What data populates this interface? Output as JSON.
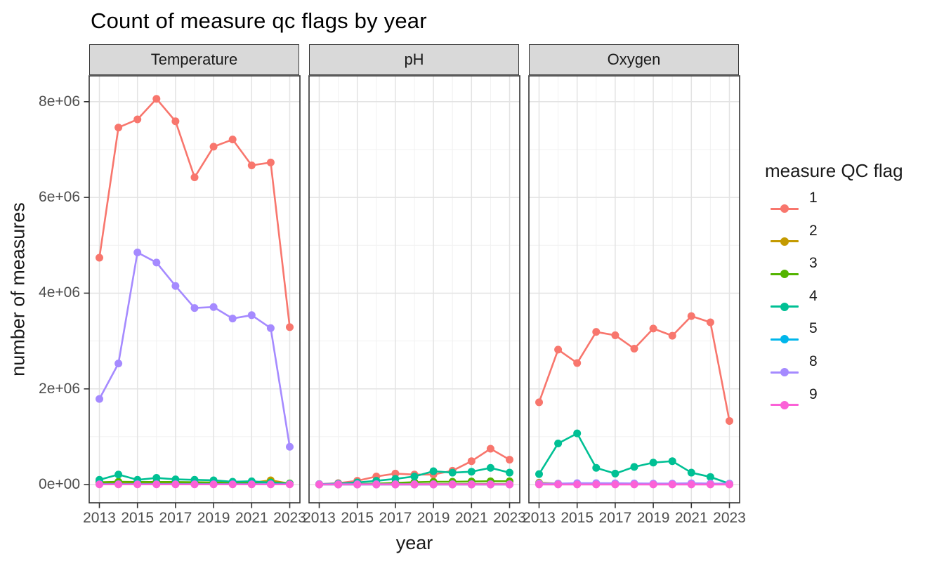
{
  "title": "Count of measure qc flags by year",
  "facets": [
    "Temperature",
    "pH",
    "Oxygen"
  ],
  "axes": {
    "x_title": "year",
    "y_title": "number of measures",
    "x_tick_labels": [
      "2013",
      "2015",
      "2017",
      "2019",
      "2021",
      "2023"
    ],
    "x_tick_values": [
      2013,
      2015,
      2017,
      2019,
      2021,
      2023
    ],
    "x_minor_values": [
      2014,
      2016,
      2018,
      2020,
      2022
    ],
    "x_domain": [
      2012.465,
      2023.535
    ],
    "y_tick_labels": [
      "0e+00",
      "2e+06",
      "4e+06",
      "6e+06",
      "8e+06"
    ],
    "y_tick_values": [
      0,
      2000000,
      4000000,
      6000000,
      8000000
    ],
    "y_minor_values": [
      1000000,
      3000000,
      5000000,
      7000000
    ],
    "y_domain": [
      -380000,
      8540000
    ],
    "grid": "on"
  },
  "legend": {
    "title": "measure QC flag",
    "position": "right",
    "entries": [
      {
        "label": "1",
        "color": "#F8766D"
      },
      {
        "label": "2",
        "color": "#C49A00"
      },
      {
        "label": "3",
        "color": "#53B400"
      },
      {
        "label": "4",
        "color": "#00C094"
      },
      {
        "label": "5",
        "color": "#00B6EB"
      },
      {
        "label": "8",
        "color": "#A58AFF"
      },
      {
        "label": "9",
        "color": "#FB61D7"
      }
    ]
  },
  "style_colors": {
    "grid_major": "#e3e3e3",
    "grid_minor": "#f1f1f1",
    "panel_border": "#333333",
    "strip_fill": "#d9d9d9",
    "tick_mark": "#333333",
    "tick_text": "#4d4d4d",
    "text": "#1a1a1a"
  },
  "chart_data": {
    "type": "line",
    "x": [
      2013,
      2014,
      2015,
      2016,
      2017,
      2018,
      2019,
      2020,
      2021,
      2022,
      2023
    ],
    "panels": [
      {
        "facet": "Temperature",
        "series": [
          {
            "name": "1",
            "color": "#F8766D",
            "values": [
              4740000,
              7460000,
              7630000,
              8060000,
              7590000,
              6420000,
              7060000,
              7210000,
              6670000,
              6730000,
              3290000
            ]
          },
          {
            "name": "2",
            "color": "#C49A00",
            "values": [
              30000,
              30000,
              30000,
              35000,
              35000,
              35000,
              35000,
              35000,
              40000,
              90000,
              20000
            ]
          },
          {
            "name": "3",
            "color": "#53B400",
            "values": [
              50000,
              60000,
              55000,
              55000,
              55000,
              50000,
              45000,
              45000,
              45000,
              50000,
              25000
            ]
          },
          {
            "name": "4",
            "color": "#00C094",
            "values": [
              100000,
              210000,
              100000,
              140000,
              110000,
              100000,
              90000,
              60000,
              70000,
              40000,
              15000
            ]
          },
          {
            "name": "5",
            "color": "#00B6EB",
            "values": [
              10000,
              10000,
              10000,
              10000,
              10000,
              10000,
              10000,
              10000,
              10000,
              10000,
              10000
            ]
          },
          {
            "name": "8",
            "color": "#A58AFF",
            "values": [
              1790000,
              2530000,
              4850000,
              4640000,
              4150000,
              3690000,
              3710000,
              3470000,
              3540000,
              3270000,
              790000
            ]
          },
          {
            "name": "9",
            "color": "#FB61D7",
            "values": [
              5000,
              5000,
              5000,
              5000,
              5000,
              5000,
              5000,
              5000,
              5000,
              5000,
              5000
            ]
          }
        ]
      },
      {
        "facet": "pH",
        "series": [
          {
            "name": "1",
            "color": "#F8766D",
            "values": [
              10000,
              30000,
              80000,
              170000,
              230000,
              210000,
              210000,
              290000,
              490000,
              750000,
              520000
            ]
          },
          {
            "name": "2",
            "color": "#C49A00",
            "values": [
              5000,
              5000,
              5000,
              8000,
              10000,
              10000,
              12000,
              12000,
              12000,
              12000,
              10000
            ]
          },
          {
            "name": "3",
            "color": "#53B400",
            "values": [
              5000,
              8000,
              12000,
              20000,
              35000,
              50000,
              60000,
              60000,
              65000,
              70000,
              70000
            ]
          },
          {
            "name": "4",
            "color": "#00C094",
            "values": [
              10000,
              20000,
              45000,
              80000,
              120000,
              170000,
              280000,
              250000,
              270000,
              350000,
              250000
            ]
          },
          {
            "name": "5",
            "color": "#00B6EB",
            "values": [
              3000,
              3000,
              3000,
              3000,
              3000,
              3000,
              3000,
              3000,
              3000,
              3000,
              3000
            ]
          },
          {
            "name": "8",
            "color": "#A58AFF",
            "values": [
              8000,
              8000,
              8000,
              8000,
              8000,
              8000,
              8000,
              8000,
              8000,
              8000,
              8000
            ]
          },
          {
            "name": "9",
            "color": "#FB61D7",
            "values": [
              2000,
              2000,
              2000,
              2000,
              2000,
              2000,
              2000,
              2000,
              2000,
              2000,
              2000
            ]
          }
        ]
      },
      {
        "facet": "Oxygen",
        "series": [
          {
            "name": "1",
            "color": "#F8766D",
            "values": [
              1720000,
              2820000,
              2540000,
              3190000,
              3120000,
              2840000,
              3260000,
              3110000,
              3520000,
              3390000,
              1330000
            ]
          },
          {
            "name": "2",
            "color": "#C49A00",
            "values": [
              40000,
              20000,
              15000,
              12000,
              12000,
              10000,
              10000,
              10000,
              10000,
              8000,
              5000
            ]
          },
          {
            "name": "3",
            "color": "#53B400",
            "values": [
              10000,
              10000,
              10000,
              10000,
              10000,
              10000,
              10000,
              10000,
              10000,
              10000,
              10000
            ]
          },
          {
            "name": "4",
            "color": "#00C094",
            "values": [
              220000,
              860000,
              1070000,
              350000,
              230000,
              370000,
              460000,
              490000,
              250000,
              160000,
              20000
            ]
          },
          {
            "name": "5",
            "color": "#00B6EB",
            "values": [
              12000,
              12000,
              12000,
              12000,
              12000,
              12000,
              12000,
              12000,
              12000,
              12000,
              12000
            ]
          },
          {
            "name": "8",
            "color": "#A58AFF",
            "values": [
              25000,
              20000,
              30000,
              30000,
              28000,
              25000,
              22000,
              22000,
              28000,
              22000,
              20000
            ]
          },
          {
            "name": "9",
            "color": "#FB61D7",
            "values": [
              3000,
              3000,
              3000,
              3000,
              3000,
              3000,
              3000,
              3000,
              3000,
              3000,
              3000
            ]
          }
        ]
      }
    ]
  }
}
